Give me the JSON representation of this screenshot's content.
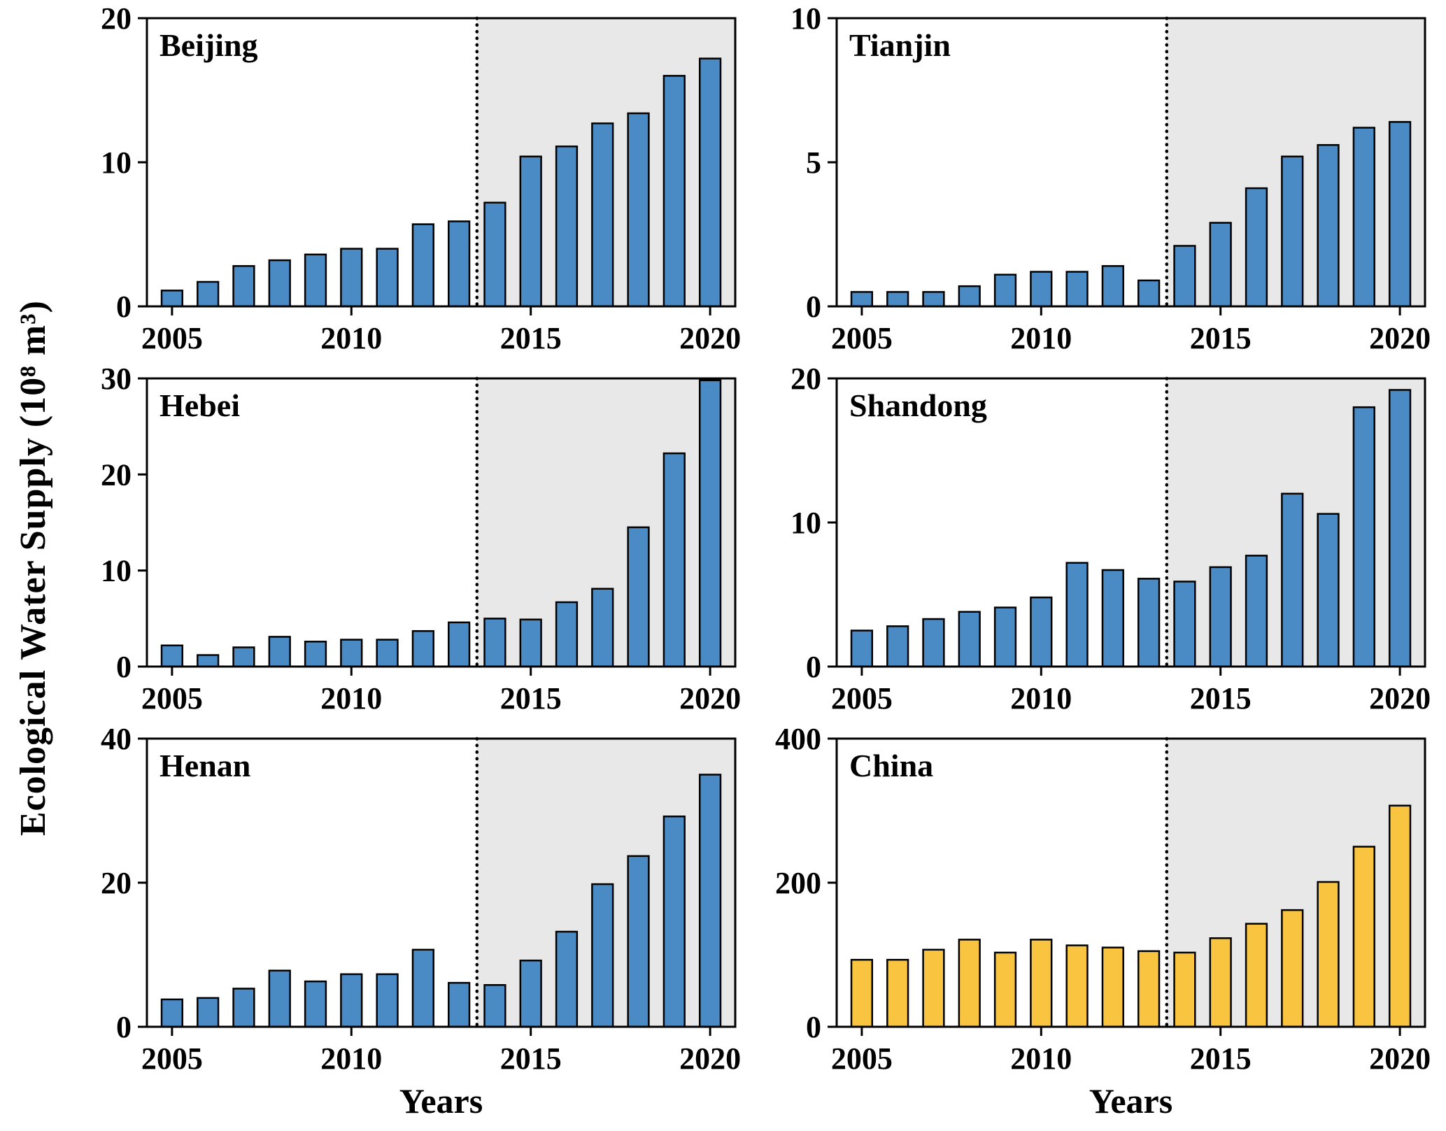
{
  "figure": {
    "ylabel": "Ecological Water Supply (10⁸ m³)",
    "xlabel": "Years"
  },
  "chart_data": [
    {
      "type": "bar",
      "title": "Beijing",
      "x": [
        2005,
        2006,
        2007,
        2008,
        2009,
        2010,
        2011,
        2012,
        2013,
        2014,
        2015,
        2016,
        2017,
        2018,
        2019,
        2020
      ],
      "values": [
        1.1,
        1.7,
        2.8,
        3.2,
        3.6,
        4.0,
        4.0,
        5.7,
        5.9,
        7.2,
        10.4,
        11.1,
        12.7,
        13.4,
        16.0,
        17.2
      ],
      "ylim": [
        0,
        20
      ],
      "yticks": [
        0,
        10,
        20
      ],
      "xticks": [
        2005,
        2010,
        2015,
        2020
      ],
      "xlabel": "",
      "bar_color": "#4a8bc6",
      "dashed_line_x": 2013.5,
      "shaded_region": {
        "from": 2013.5,
        "to": 2020.7,
        "color": "#e8e8e8"
      }
    },
    {
      "type": "bar",
      "title": "Tianjin",
      "x": [
        2005,
        2006,
        2007,
        2008,
        2009,
        2010,
        2011,
        2012,
        2013,
        2014,
        2015,
        2016,
        2017,
        2018,
        2019,
        2020
      ],
      "values": [
        0.5,
        0.5,
        0.5,
        0.7,
        1.1,
        1.2,
        1.2,
        1.4,
        0.9,
        2.1,
        2.9,
        4.1,
        5.2,
        5.6,
        6.2,
        6.4
      ],
      "ylim": [
        0,
        10
      ],
      "yticks": [
        0,
        5,
        10
      ],
      "xticks": [
        2005,
        2010,
        2015,
        2020
      ],
      "xlabel": "",
      "bar_color": "#4a8bc6",
      "dashed_line_x": 2013.5,
      "shaded_region": {
        "from": 2013.5,
        "to": 2020.7,
        "color": "#e8e8e8"
      }
    },
    {
      "type": "bar",
      "title": "Hebei",
      "x": [
        2005,
        2006,
        2007,
        2008,
        2009,
        2010,
        2011,
        2012,
        2013,
        2014,
        2015,
        2016,
        2017,
        2018,
        2019,
        2020
      ],
      "values": [
        2.2,
        1.2,
        2.0,
        3.1,
        2.6,
        2.8,
        2.8,
        3.7,
        4.6,
        5.0,
        4.9,
        6.7,
        8.1,
        14.5,
        22.2,
        29.8
      ],
      "ylim": [
        0,
        30
      ],
      "yticks": [
        0,
        10,
        20,
        30
      ],
      "xticks": [
        2005,
        2010,
        2015,
        2020
      ],
      "xlabel": "",
      "bar_color": "#4a8bc6",
      "dashed_line_x": 2013.5,
      "shaded_region": {
        "from": 2013.5,
        "to": 2020.7,
        "color": "#e8e8e8"
      }
    },
    {
      "type": "bar",
      "title": "Shandong",
      "x": [
        2005,
        2006,
        2007,
        2008,
        2009,
        2010,
        2011,
        2012,
        2013,
        2014,
        2015,
        2016,
        2017,
        2018,
        2019,
        2020
      ],
      "values": [
        2.5,
        2.8,
        3.3,
        3.8,
        4.1,
        4.8,
        7.2,
        6.7,
        6.1,
        5.9,
        6.9,
        7.7,
        12.0,
        10.6,
        18.0,
        19.2
      ],
      "ylim": [
        0,
        20
      ],
      "yticks": [
        0,
        10,
        20
      ],
      "xticks": [
        2005,
        2010,
        2015,
        2020
      ],
      "xlabel": "",
      "bar_color": "#4a8bc6",
      "dashed_line_x": 2013.5,
      "shaded_region": {
        "from": 2013.5,
        "to": 2020.7,
        "color": "#e8e8e8"
      }
    },
    {
      "type": "bar",
      "title": "Henan",
      "x": [
        2005,
        2006,
        2007,
        2008,
        2009,
        2010,
        2011,
        2012,
        2013,
        2014,
        2015,
        2016,
        2017,
        2018,
        2019,
        2020
      ],
      "values": [
        3.8,
        4.0,
        5.3,
        7.8,
        6.3,
        7.3,
        7.3,
        10.7,
        6.1,
        5.8,
        9.2,
        13.2,
        19.8,
        23.7,
        29.2,
        35.0
      ],
      "ylim": [
        0,
        40
      ],
      "yticks": [
        0,
        20,
        40
      ],
      "xticks": [
        2005,
        2010,
        2015,
        2020
      ],
      "xlabel": "Years",
      "bar_color": "#4a8bc6",
      "dashed_line_x": 2013.5,
      "shaded_region": {
        "from": 2013.5,
        "to": 2020.7,
        "color": "#e8e8e8"
      }
    },
    {
      "type": "bar",
      "title": "China",
      "x": [
        2005,
        2006,
        2007,
        2008,
        2009,
        2010,
        2011,
        2012,
        2013,
        2014,
        2015,
        2016,
        2017,
        2018,
        2019,
        2020
      ],
      "values": [
        93,
        93,
        107,
        121,
        103,
        121,
        113,
        110,
        105,
        103,
        123,
        143,
        162,
        201,
        250,
        307
      ],
      "ylim": [
        0,
        400
      ],
      "yticks": [
        0,
        200,
        400
      ],
      "xticks": [
        2005,
        2010,
        2015,
        2020
      ],
      "xlabel": "Years",
      "bar_color": "#f9c440",
      "dashed_line_x": 2013.5,
      "shaded_region": {
        "from": 2013.5,
        "to": 2020.7,
        "color": "#e8e8e8"
      }
    }
  ]
}
